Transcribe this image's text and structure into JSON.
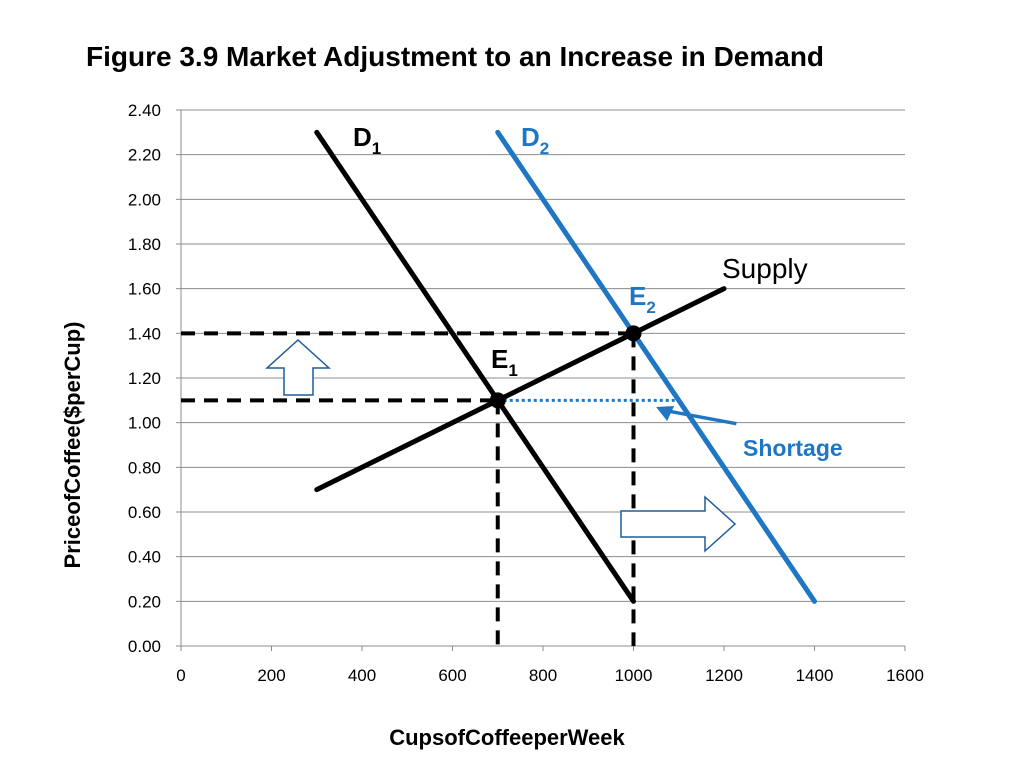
{
  "title": "Figure 3.9  Market Adjustment to an Increase in Demand",
  "colors": {
    "black": "#000000",
    "blue": "#1f77c4",
    "grid": "#8c8c8c"
  },
  "chart_data": {
    "type": "line",
    "xlabel": "Cups\u001fof\u001fCoffee\u001fper\u001fWeek",
    "ylabel": "Price\u001fof\u001fCoffee\u001f($\u001fper\u001fCup)",
    "xlim": [
      0,
      1600
    ],
    "ylim": [
      0,
      2.4
    ],
    "x_ticks": [
      "0",
      "200",
      "400",
      "600",
      "800",
      "1000",
      "1200",
      "1400",
      "1600"
    ],
    "y_ticks": [
      "0.00",
      "0.20",
      "0.40",
      "0.60",
      "0.80",
      "1.00",
      "1.20",
      "1.40",
      "1.60",
      "1.80",
      "2.00",
      "2.20",
      "2.40"
    ],
    "grid": "horizontal",
    "series": [
      {
        "name": "D1",
        "label_main": "D",
        "label_sub": "1",
        "color": "#000000",
        "points": [
          [
            300,
            2.3
          ],
          [
            1000,
            0.2
          ]
        ]
      },
      {
        "name": "D2",
        "label_main": "D",
        "label_sub": "2",
        "color": "#1f77c4",
        "points": [
          [
            700,
            2.3
          ],
          [
            1400,
            0.2
          ]
        ]
      },
      {
        "name": "Supply",
        "label_main": "Supply",
        "label_sub": "",
        "color": "#000000",
        "points": [
          [
            300,
            0.7
          ],
          [
            1200,
            1.6
          ]
        ]
      }
    ],
    "equilibria": [
      {
        "label_main": "E",
        "label_sub": "1",
        "color": "#000000",
        "x": 700,
        "y": 1.1
      },
      {
        "label_main": "E",
        "label_sub": "2",
        "color": "#1f77c4",
        "x": 1000,
        "y": 1.4
      }
    ],
    "annotations": {
      "shortage_label": "Shortage",
      "shortage_range": {
        "y": 1.1,
        "x_from": 700,
        "x_to": 1100
      },
      "up_arrow": "price increase",
      "right_arrow": "demand shift"
    }
  }
}
